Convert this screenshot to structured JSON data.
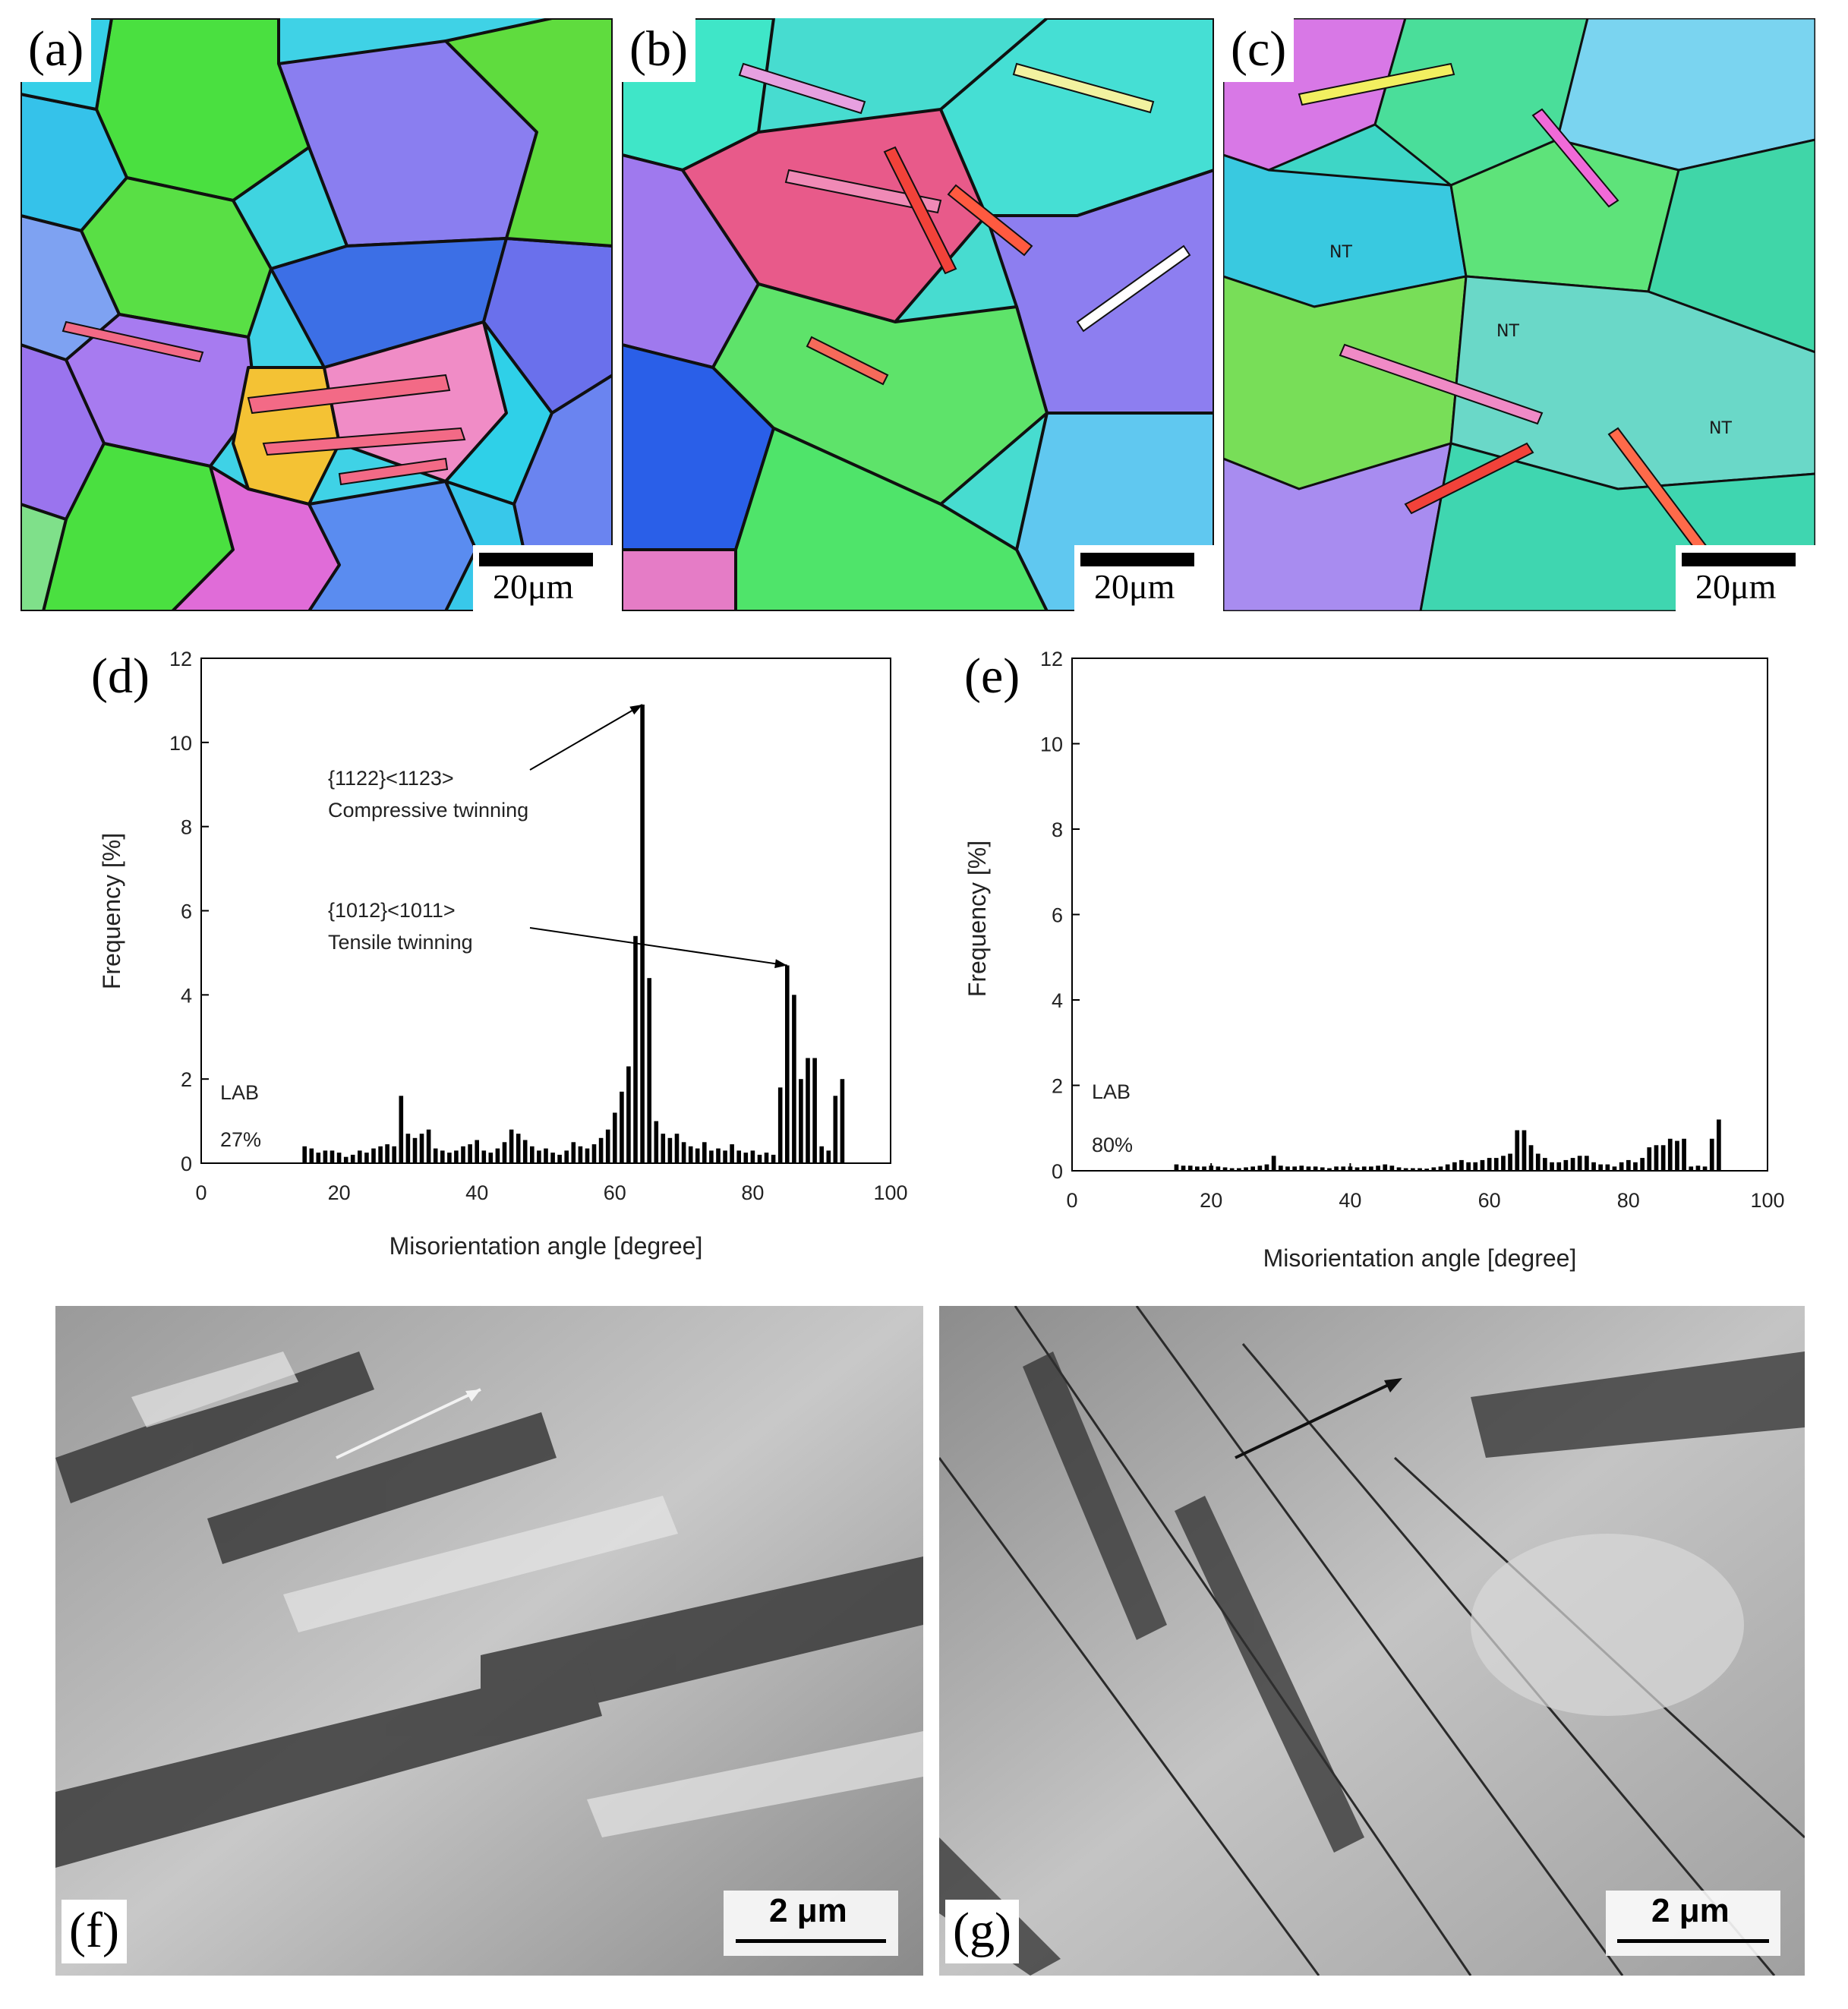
{
  "panels": {
    "a": {
      "label": "(a)",
      "scale_text": "20μm"
    },
    "b": {
      "label": "(b)",
      "scale_text": "20μm"
    },
    "c": {
      "label": "(c)",
      "scale_text": "20μm",
      "annotations": [
        "NT",
        "NT",
        "NT"
      ]
    },
    "f": {
      "label": "(f)",
      "scale_text": "2 μm"
    },
    "g": {
      "label": "(g)",
      "scale_text": "2 μm"
    }
  },
  "chart_data": [
    {
      "id": "d",
      "panel_label": "(d)",
      "type": "bar",
      "xlabel": "Misorientation angle [degree]",
      "ylabel": "Frequency [%]",
      "xlim": [
        0,
        100
      ],
      "ylim": [
        0,
        12
      ],
      "xticks": [
        0,
        20,
        40,
        60,
        80,
        100
      ],
      "yticks": [
        0,
        2,
        4,
        6,
        8,
        10,
        12
      ],
      "grid": false,
      "text_annotations": [
        "LAB",
        "27%"
      ],
      "arrow_annotations": [
        {
          "line1": "{1122}<1123>",
          "line2": "Compressive twinning",
          "target": [
            64,
            10.9
          ]
        },
        {
          "line1": "{1012}<1011>",
          "line2": "Tensile twinning",
          "target": [
            85,
            4.7
          ]
        }
      ],
      "x": [
        15,
        16,
        17,
        18,
        19,
        20,
        21,
        22,
        23,
        24,
        25,
        26,
        27,
        28,
        29,
        30,
        31,
        32,
        33,
        34,
        35,
        36,
        37,
        38,
        39,
        40,
        41,
        42,
        43,
        44,
        45,
        46,
        47,
        48,
        49,
        50,
        51,
        52,
        53,
        54,
        55,
        56,
        57,
        58,
        59,
        60,
        61,
        62,
        63,
        64,
        65,
        66,
        67,
        68,
        69,
        70,
        71,
        72,
        73,
        74,
        75,
        76,
        77,
        78,
        79,
        80,
        81,
        82,
        83,
        84,
        85,
        86,
        87,
        88,
        89,
        90,
        91,
        92,
        93
      ],
      "values": [
        0.4,
        0.35,
        0.25,
        0.3,
        0.3,
        0.25,
        0.15,
        0.2,
        0.3,
        0.25,
        0.35,
        0.4,
        0.45,
        0.4,
        1.6,
        0.7,
        0.6,
        0.7,
        0.8,
        0.35,
        0.3,
        0.25,
        0.3,
        0.4,
        0.45,
        0.55,
        0.3,
        0.25,
        0.35,
        0.5,
        0.8,
        0.7,
        0.55,
        0.4,
        0.3,
        0.35,
        0.25,
        0.2,
        0.3,
        0.5,
        0.4,
        0.35,
        0.45,
        0.6,
        0.8,
        1.2,
        1.7,
        2.3,
        5.4,
        10.9,
        4.4,
        1.0,
        0.7,
        0.6,
        0.7,
        0.5,
        0.4,
        0.35,
        0.5,
        0.3,
        0.35,
        0.3,
        0.45,
        0.3,
        0.25,
        0.3,
        0.2,
        0.25,
        0.2,
        1.8,
        4.7,
        4.0,
        2.0,
        2.5,
        2.5,
        0.4,
        0.3,
        1.6,
        2.0
      ]
    },
    {
      "id": "e",
      "panel_label": "(e)",
      "type": "bar",
      "xlabel": "Misorientation angle [degree]",
      "ylabel": "Frequency [%]",
      "xlim": [
        0,
        100
      ],
      "ylim": [
        0,
        12
      ],
      "xticks": [
        0,
        20,
        40,
        60,
        80,
        100
      ],
      "yticks": [
        0,
        2,
        4,
        6,
        8,
        10,
        12
      ],
      "grid": false,
      "text_annotations": [
        "LAB",
        "80%"
      ],
      "x": [
        15,
        16,
        17,
        18,
        19,
        20,
        21,
        22,
        23,
        24,
        25,
        26,
        27,
        28,
        29,
        30,
        31,
        32,
        33,
        34,
        35,
        36,
        37,
        38,
        39,
        40,
        41,
        42,
        43,
        44,
        45,
        46,
        47,
        48,
        49,
        50,
        51,
        52,
        53,
        54,
        55,
        56,
        57,
        58,
        59,
        60,
        61,
        62,
        63,
        64,
        65,
        66,
        67,
        68,
        69,
        70,
        71,
        72,
        73,
        74,
        75,
        76,
        77,
        78,
        79,
        80,
        81,
        82,
        83,
        84,
        85,
        86,
        87,
        88,
        89,
        90,
        91,
        92,
        93
      ],
      "values": [
        0.15,
        0.12,
        0.12,
        0.1,
        0.1,
        0.12,
        0.1,
        0.08,
        0.06,
        0.06,
        0.08,
        0.1,
        0.12,
        0.15,
        0.35,
        0.12,
        0.1,
        0.1,
        0.12,
        0.1,
        0.1,
        0.08,
        0.06,
        0.1,
        0.1,
        0.1,
        0.08,
        0.1,
        0.1,
        0.12,
        0.15,
        0.12,
        0.08,
        0.06,
        0.06,
        0.06,
        0.05,
        0.08,
        0.1,
        0.15,
        0.2,
        0.25,
        0.2,
        0.2,
        0.25,
        0.3,
        0.3,
        0.35,
        0.4,
        0.95,
        0.95,
        0.6,
        0.4,
        0.3,
        0.2,
        0.2,
        0.25,
        0.3,
        0.35,
        0.35,
        0.2,
        0.15,
        0.15,
        0.1,
        0.2,
        0.25,
        0.2,
        0.3,
        0.55,
        0.6,
        0.6,
        0.75,
        0.7,
        0.75,
        0.1,
        0.12,
        0.1,
        0.75,
        1.2
      ]
    }
  ]
}
